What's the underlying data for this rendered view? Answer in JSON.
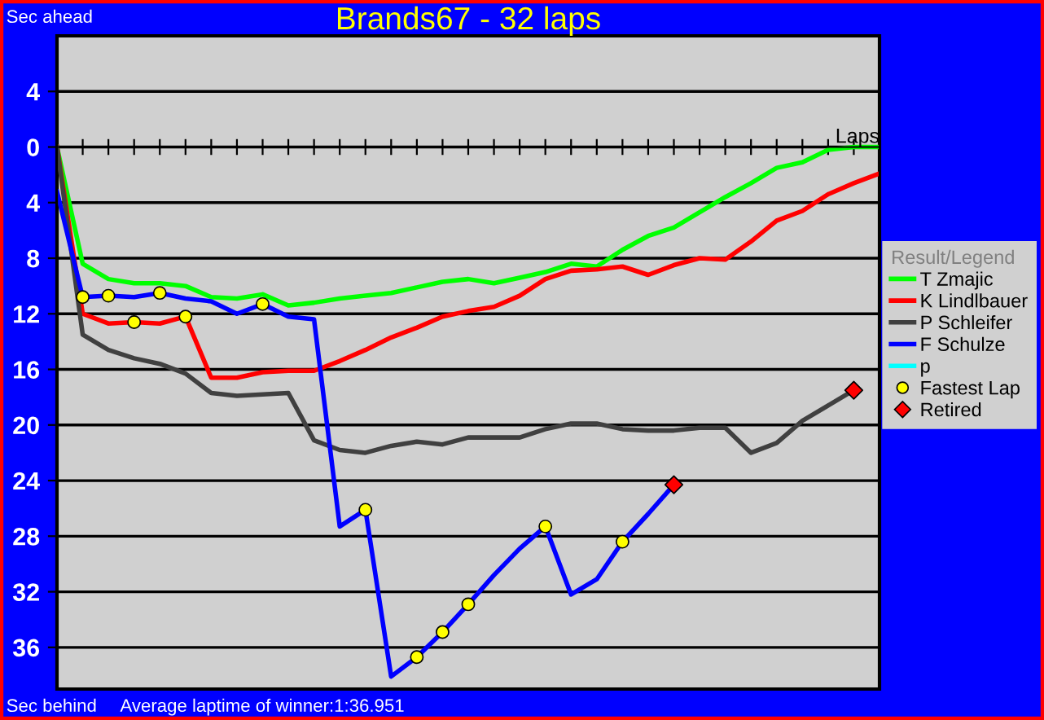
{
  "chart_data": {
    "type": "line",
    "title": "Brands67 - 32 laps",
    "xlabel": "Laps",
    "annotations": [
      "Sec ahead",
      "Sec behind",
      "Average laptime of winner:1:36.951"
    ],
    "legend_title": "Result/Legend",
    "legend": "right",
    "grid": "y",
    "tick_labels": "y",
    "line_style": "solid",
    "categories": [
      null,
      null,
      null,
      null,
      null,
      null,
      null,
      null,
      null,
      null,
      null,
      null,
      null,
      null,
      null,
      null,
      null,
      null,
      null,
      null,
      null,
      null,
      null,
      null,
      null,
      null,
      null,
      null,
      null,
      null,
      null,
      null,
      null
    ],
    "ylim": [
      39,
      -8
    ],
    "yticks": [
      {
        "value": -4,
        "label": "4"
      },
      0,
      4,
      8,
      12,
      16,
      20,
      24,
      28,
      32,
      36
    ],
    "series": [
      {
        "name": "T Zmajic",
        "color": "#00ff00",
        "values": [
          0,
          8.4,
          9.5,
          9.8,
          9.8,
          10.0,
          10.8,
          10.9,
          10.6,
          11.4,
          11.2,
          10.9,
          10.7,
          10.5,
          10.1,
          9.7,
          9.5,
          9.8,
          9.4,
          9.0,
          8.4,
          8.6,
          7.4,
          6.4,
          5.8,
          4.7,
          3.6,
          2.6,
          1.5,
          1.1,
          0.2,
          0,
          0
        ]
      },
      {
        "name": "K Lindlbauer",
        "color": "#ff0000",
        "values": [
          0,
          12.0,
          12.7,
          12.6,
          12.7,
          12.2,
          16.6,
          16.6,
          16.2,
          16.1,
          16.1,
          15.4,
          14.6,
          13.7,
          13.0,
          12.2,
          11.8,
          11.5,
          10.7,
          9.5,
          8.9,
          8.8,
          8.6,
          9.2,
          8.5,
          8.0,
          8.1,
          6.8,
          5.3,
          4.6,
          3.4,
          2.6,
          1.9
        ]
      },
      {
        "name": "P Schleifer",
        "color": "#404040",
        "values": [
          0,
          13.5,
          14.6,
          15.2,
          15.6,
          16.3,
          17.7,
          17.9,
          17.8,
          17.7,
          21.1,
          21.8,
          22.0,
          21.5,
          21.2,
          21.4,
          20.9,
          20.9,
          20.9,
          20.3,
          19.9,
          19.9,
          20.3,
          20.4,
          20.4,
          20.2,
          20.2,
          22.0,
          21.3,
          19.7,
          18.6,
          17.5,
          null
        ]
      },
      {
        "name": "F Schulze",
        "color": "#0000ff",
        "values": [
          3.2,
          10.8,
          10.7,
          10.8,
          10.5,
          10.9,
          11.1,
          12.0,
          11.3,
          12.2,
          12.4,
          27.3,
          26.1,
          38.1,
          36.7,
          34.9,
          32.9,
          30.8,
          28.9,
          27.3,
          32.2,
          31.1,
          28.4,
          26.4,
          24.3,
          null,
          null,
          null,
          null,
          null,
          null,
          null,
          null
        ]
      },
      {
        "name": "p",
        "color": "#00ffff",
        "values": [
          null,
          null,
          null,
          null,
          null,
          null,
          null,
          null,
          null,
          null,
          null,
          null,
          null,
          null,
          null,
          null,
          null,
          null,
          null,
          null,
          null,
          null,
          null,
          null,
          null,
          null,
          null,
          null,
          null,
          null,
          null,
          null,
          null
        ]
      },
      {
        "name": "Fastest Lap",
        "color": "#ffff00",
        "type": "scatter",
        "marker": "circle",
        "values": [
          null,
          10.8,
          10.7,
          12.6,
          10.5,
          12.2,
          null,
          null,
          11.3,
          null,
          null,
          null,
          26.1,
          null,
          36.7,
          34.9,
          32.9,
          null,
          null,
          27.3,
          null,
          null,
          28.4,
          null,
          null,
          null,
          null,
          null,
          null,
          null,
          null,
          null,
          null
        ]
      },
      {
        "name": "Retired",
        "color": "#ff0000",
        "type": "scatter",
        "marker": "diamond",
        "values": [
          null,
          null,
          null,
          null,
          null,
          null,
          null,
          null,
          null,
          null,
          null,
          null,
          null,
          null,
          null,
          null,
          null,
          null,
          null,
          null,
          null,
          null,
          null,
          null,
          24.3,
          null,
          null,
          null,
          null,
          null,
          null,
          17.5,
          null
        ]
      }
    ]
  }
}
